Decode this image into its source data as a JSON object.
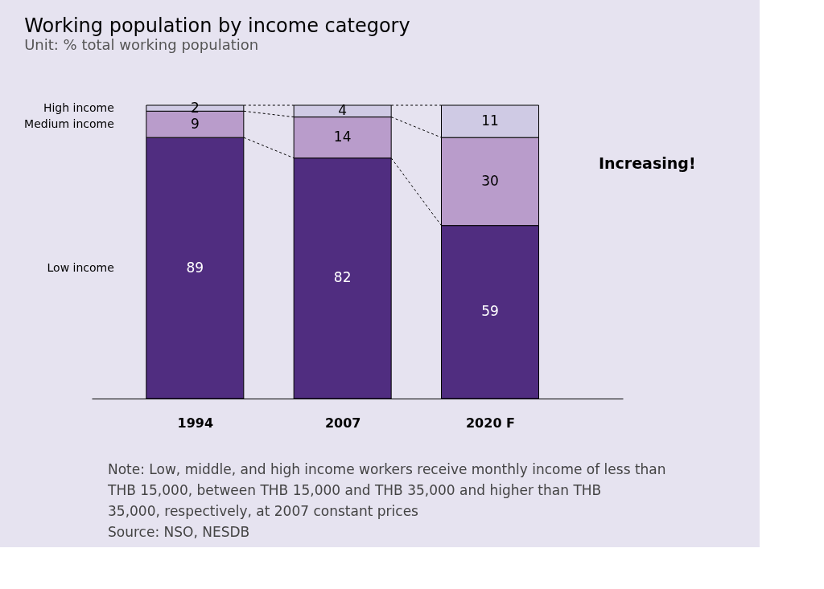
{
  "chart_data": {
    "type": "bar",
    "title": "Working population by income category",
    "subtitle": "Unit: % total working population",
    "categories": [
      "1994",
      "2007",
      "2020 F"
    ],
    "stacked": true,
    "data_labels": true,
    "legend": "left",
    "series": [
      {
        "name": "Low income",
        "color": "#502d80",
        "values": [
          89,
          82,
          59
        ]
      },
      {
        "name": "Medium income",
        "color": "#b99ccb",
        "values": [
          9,
          14,
          30
        ]
      },
      {
        "name": "High income",
        "color": "#cfcae4",
        "values": [
          2,
          4,
          11
        ]
      }
    ],
    "annotations": [
      "Increasing!",
      "Note: Low, middle, and high income workers receive monthly income of less than THB 15,000, between THB 15,000 and THB 35,000 and higher than THB 35,000, respectively, at 2007 constant prices",
      "Source: NSO, NESDB"
    ]
  }
}
